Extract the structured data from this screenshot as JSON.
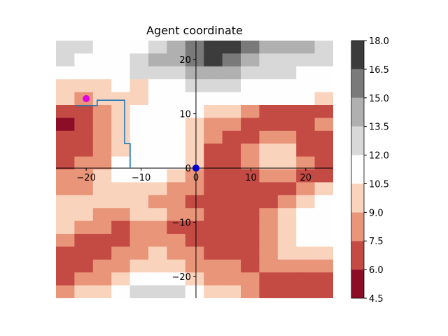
{
  "chart_data": {
    "type": "heatmap",
    "title": "Agent coordinate",
    "xlabel": "",
    "ylabel": "",
    "xlim": [
      -25.5,
      25
    ],
    "ylim": [
      -24,
      23.5
    ],
    "x_ticks": [
      -20,
      -10,
      0,
      10,
      20
    ],
    "y_ticks": [
      -20,
      -10,
      0,
      10,
      20
    ],
    "grid": false,
    "colorbar": {
      "levels": [
        4.5,
        6.0,
        7.5,
        9.0,
        10.5,
        12.0,
        13.5,
        15.0,
        16.5,
        18.0
      ],
      "tick_labels": [
        "4.5",
        "6.0",
        "7.5",
        "9.0",
        "10.5",
        "12.0",
        "13.5",
        "15.0",
        "16.5",
        "18.0"
      ],
      "colors": [
        "#8b0d26",
        "#c44a44",
        "#e9957a",
        "#fad3bd",
        "#fefefe",
        "#d8d8d8",
        "#b0b0b0",
        "#7a7a7a",
        "#3c3c3c"
      ]
    },
    "field": {
      "x_start": -25.5,
      "x_step": 2.55,
      "y_start": 23.5,
      "y_step": -2.375,
      "rows": [
        "55444 5678 8 7 6  6  6 5",
        "54445 6678 7 6 5  5  5 5",
        "44445 5566 6 5 5  5  4 4",
        "33343 4455 5 4 4  4  4 4",
        "32333 4444 4 4 4  4  4 3",
        "11234 4443 3 2 1  1  1 1",
        "01234 4432 2 1 1  1  1 2",
        "11234 4432 1 1 2  2  1 1",
        "11234 4431 1 2 3  3  1 1",
        "12244 4431 1 2 3  3  2 1",
        "22344 4321 1 1 2  2  1 1",
        "22333 3221 1 1 1  1  2 3",
        "33333 2211 1 1 1  2  3 4",
        "33223 3221 1 1 2  3  4 4",
        "32212 2111 1 1 2  3  4 4",
        "21112 2211 1 1 2  3  4 4",
        "11122 3221 1 1 2  3  3 3",
        "11223 3322 2 1 2  2  2 2",
        "12234 4432 2 2 1  1  1 1",
        "23345 5543 3 2 1  1  1 1",
        "34456 6544 3 3 2  2  2 2"
      ]
    },
    "series": [
      {
        "type": "line",
        "color": "#1f77b4",
        "x": [
          -22,
          -18,
          -18,
          -13,
          -13,
          -12,
          -12
        ],
        "y": [
          11.5,
          11.5,
          12.5,
          12.5,
          4.5,
          4.5,
          0
        ]
      }
    ],
    "points": [
      {
        "x": -20,
        "y": 12.8,
        "color": "#e000e0"
      },
      {
        "x": 0,
        "y": 0,
        "color": "#0000cc"
      }
    ]
  }
}
